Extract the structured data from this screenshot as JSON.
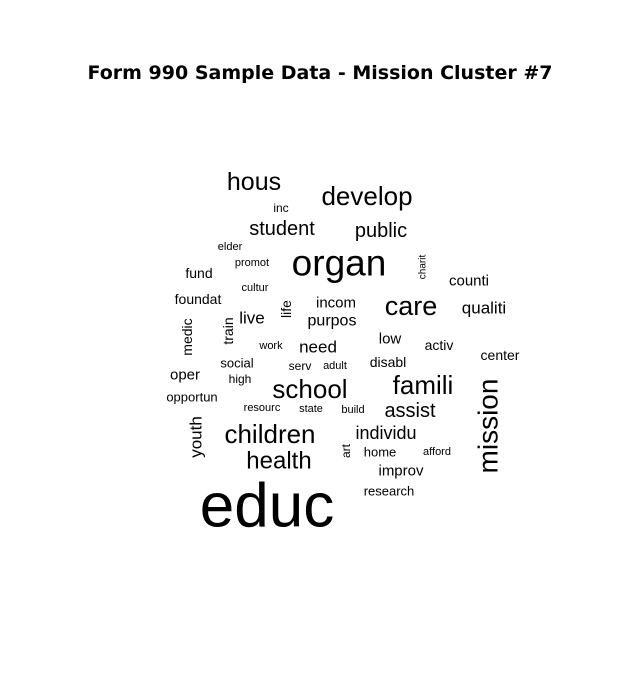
{
  "chart_data": {
    "type": "wordcloud",
    "title": "Form 990 Sample Data - Mission Cluster #7",
    "words": [
      {
        "word": "educ",
        "freq": 100
      },
      {
        "word": "organ",
        "freq": 44
      },
      {
        "word": "mission",
        "freq": 33
      },
      {
        "word": "develop",
        "freq": 30
      },
      {
        "word": "care",
        "freq": 30
      },
      {
        "word": "famili",
        "freq": 30
      },
      {
        "word": "children",
        "freq": 29
      },
      {
        "word": "school",
        "freq": 29
      },
      {
        "word": "hous",
        "freq": 28
      },
      {
        "word": "health",
        "freq": 27
      },
      {
        "word": "student",
        "freq": 23
      },
      {
        "word": "public",
        "freq": 23
      },
      {
        "word": "assist",
        "freq": 23
      },
      {
        "word": "individu",
        "freq": 21
      },
      {
        "word": "need",
        "freq": 19
      },
      {
        "word": "youth",
        "freq": 19
      },
      {
        "word": "qualiti",
        "freq": 18
      },
      {
        "word": "live",
        "freq": 18
      },
      {
        "word": "purpos",
        "freq": 17
      },
      {
        "word": "incom",
        "freq": 16
      },
      {
        "word": "counti",
        "freq": 16
      },
      {
        "word": "improv",
        "freq": 16
      },
      {
        "word": "oper",
        "freq": 16
      },
      {
        "word": "low",
        "freq": 16
      },
      {
        "word": "center",
        "freq": 15
      },
      {
        "word": "disabl",
        "freq": 15
      },
      {
        "word": "activ",
        "freq": 15
      },
      {
        "word": "fund",
        "freq": 15
      },
      {
        "word": "foundat",
        "freq": 14
      },
      {
        "word": "medic",
        "freq": 14
      },
      {
        "word": "life",
        "freq": 14
      },
      {
        "word": "train",
        "freq": 13
      },
      {
        "word": "research",
        "freq": 13
      },
      {
        "word": "social",
        "freq": 13
      },
      {
        "word": "opportun",
        "freq": 13
      },
      {
        "word": "high",
        "freq": 12
      },
      {
        "word": "home",
        "freq": 13
      },
      {
        "word": "art",
        "freq": 12
      },
      {
        "word": "inc",
        "freq": 12
      },
      {
        "word": "elder",
        "freq": 11
      },
      {
        "word": "promot",
        "freq": 11
      },
      {
        "word": "cultur",
        "freq": 11
      },
      {
        "word": "work",
        "freq": 11
      },
      {
        "word": "serv",
        "freq": 12
      },
      {
        "word": "adult",
        "freq": 11
      },
      {
        "word": "resourc",
        "freq": 11
      },
      {
        "word": "state",
        "freq": 11
      },
      {
        "word": "build",
        "freq": 11
      },
      {
        "word": "afford",
        "freq": 11
      },
      {
        "word": "charit",
        "freq": 10
      }
    ]
  }
}
